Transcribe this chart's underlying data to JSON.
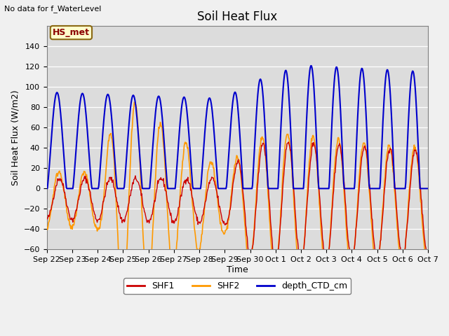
{
  "title": "Soil Heat Flux",
  "ylabel": "Soil Heat Flux (W/m2)",
  "xlabel": "Time",
  "top_left_text": "No data for f_WaterLevel",
  "annotation_box": "HS_met",
  "ylim": [
    -60,
    160
  ],
  "yticks": [
    -60,
    -40,
    -20,
    0,
    20,
    40,
    60,
    80,
    100,
    120,
    140
  ],
  "background_color": "#dcdcdc",
  "fig_background": "#f0f0f0",
  "colors": {
    "SHF1": "#cc0000",
    "SHF2": "#ff9900",
    "depth_CTD_cm": "#0000cc"
  },
  "x_tick_labels": [
    "Sep 22",
    "Sep 23",
    "Sep 24",
    "Sep 25",
    "Sep 26",
    "Sep 27",
    "Sep 28",
    "Sep 29",
    "Sep 30",
    "Oct 1",
    "Oct 2",
    "Oct 3",
    "Oct 4",
    "Oct 5",
    "Oct 6",
    "Oct 7"
  ],
  "n_days": 15,
  "points_per_day": 48
}
